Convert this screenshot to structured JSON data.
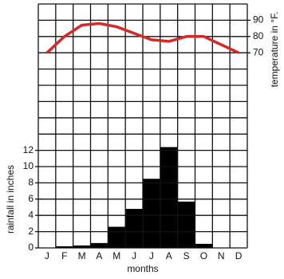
{
  "chart_data": {
    "type": "bar",
    "x_label": "months",
    "y_label": "rainfall in inches",
    "y2_label": "temperature in °F.",
    "categories": [
      "J",
      "F",
      "M",
      "A",
      "M",
      "J",
      "J",
      "A",
      "S",
      "O",
      "N",
      "D"
    ],
    "series": [
      {
        "name": "rainfall",
        "type": "bar",
        "color": "#000000",
        "values": [
          0,
          0.2,
          0.3,
          0.6,
          2.6,
          4.8,
          8.5,
          12.4,
          5.7,
          0.5,
          0,
          0
        ]
      },
      {
        "name": "temperature",
        "type": "line",
        "axis": "y2",
        "color": "#d42a2a",
        "values": [
          70,
          80,
          87,
          88,
          86,
          82,
          78,
          77,
          80,
          80,
          75,
          70
        ]
      }
    ],
    "ylim": [
      0,
      30
    ],
    "yticks": [
      0,
      2,
      4,
      6,
      8,
      10,
      12
    ],
    "y2lim": [
      -50,
      100
    ],
    "y2ticks": [
      70,
      80,
      90
    ],
    "grid": true
  }
}
